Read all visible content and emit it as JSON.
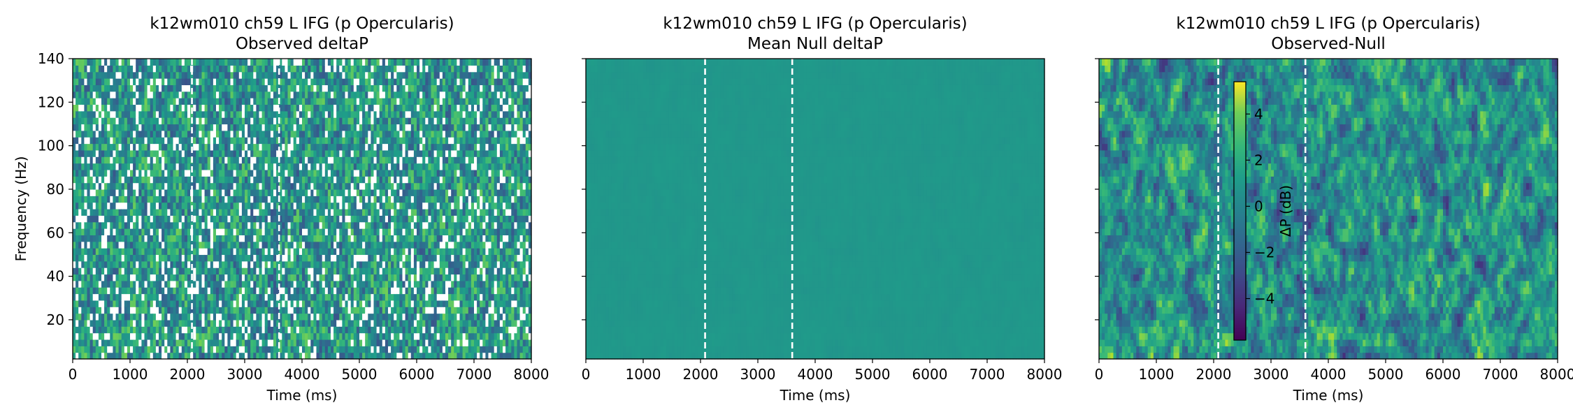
{
  "chart_data": [
    {
      "type": "heatmap",
      "title": "k12wm010 ch59 L IFG (p Opercularis)",
      "subtitle": "Observed deltaP",
      "xlabel": "Time (ms)",
      "ylabel": "Frequency (Hz)",
      "xlim": [
        0,
        8000
      ],
      "ylim": [
        2,
        140
      ],
      "x_ticks": [
        0,
        1000,
        2000,
        3000,
        4000,
        5000,
        6000,
        7000,
        8000
      ],
      "y_ticks": [
        20,
        40,
        60,
        80,
        100,
        120,
        140
      ],
      "y_tick_labels_shown": true,
      "event_lines_ms": [
        2080,
        3600
      ],
      "colormap": "viridis",
      "pattern": "observed",
      "masked_white": true
    },
    {
      "type": "heatmap",
      "title": "k12wm010 ch59 L IFG (p Opercularis)",
      "subtitle": "Mean Null deltaP",
      "xlabel": "Time (ms)",
      "ylabel": "",
      "xlim": [
        0,
        8000
      ],
      "ylim": [
        2,
        140
      ],
      "x_ticks": [
        0,
        1000,
        2000,
        3000,
        4000,
        5000,
        6000,
        7000,
        8000
      ],
      "y_ticks": [
        20,
        40,
        60,
        80,
        100,
        120,
        140
      ],
      "y_tick_labels_shown": false,
      "event_lines_ms": [
        2080,
        3600
      ],
      "colormap": "viridis",
      "pattern": "null",
      "masked_white": false
    },
    {
      "type": "heatmap",
      "title": "k12wm010 ch59 L IFG (p Opercularis)",
      "subtitle": "Observed-Null",
      "xlabel": "Time (ms)",
      "ylabel": "",
      "xlim": [
        0,
        8000
      ],
      "ylim": [
        2,
        140
      ],
      "x_ticks": [
        0,
        1000,
        2000,
        3000,
        4000,
        5000,
        6000,
        7000,
        8000
      ],
      "y_ticks": [
        20,
        40,
        60,
        80,
        100,
        120,
        140
      ],
      "y_tick_labels_shown": false,
      "event_lines_ms": [
        2080,
        3600
      ],
      "colormap": "viridis",
      "pattern": "difference",
      "masked_white": false,
      "colorbar": {
        "label": "ΔP (dB)",
        "range": [
          -5.8,
          5.4
        ],
        "ticks": [
          4,
          2,
          0,
          -2,
          -4
        ],
        "tick_labels": [
          "4",
          "2",
          "0",
          "−2",
          "−4"
        ]
      }
    }
  ]
}
